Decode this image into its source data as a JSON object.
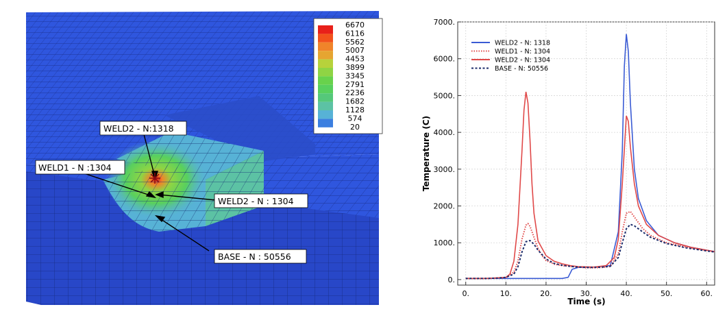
{
  "fe_model": {
    "colorbar": {
      "levels": [
        "6670",
        "6116",
        "5562",
        "5007",
        "4453",
        "3899",
        "3345",
        "2791",
        "2236",
        "1682",
        "1128",
        "574",
        "20"
      ],
      "colors": [
        "#e8201a",
        "#f2521c",
        "#f0842a",
        "#e6a531",
        "#b7d23b",
        "#8fd444",
        "#68d24c",
        "#58d05e",
        "#55c87a",
        "#5cc2a4",
        "#57b2d6",
        "#3b7fe0",
        "#2a52e0"
      ]
    },
    "annotations": [
      {
        "label": "WELD2 - N:1318"
      },
      {
        "label": "WELD1 - N :1304"
      },
      {
        "label": "WELD2 - N : 1304"
      },
      {
        "label": "BASE - N : 50556"
      }
    ],
    "mesh_color": "#2f56de"
  },
  "chart_data": {
    "type": "line",
    "xlabel": "Time (s)",
    "ylabel": "Temperature (C)",
    "xlim": [
      -2,
      62
    ],
    "ylim": [
      -150,
      7000
    ],
    "xticks": [
      0,
      10,
      20,
      30,
      40,
      50,
      60
    ],
    "xtick_labels": [
      "0.",
      "10.",
      "20.",
      "30.",
      "40.",
      "50.",
      "60."
    ],
    "yticks": [
      0,
      1000,
      2000,
      3000,
      4000,
      5000,
      6000,
      7000
    ],
    "ytick_labels": [
      "0.",
      "1000.",
      "2000.",
      "3000.",
      "4000.",
      "5000.",
      "6000.",
      "7000."
    ],
    "legend_position": "top-left",
    "series": [
      {
        "name": "WELD2 - N: 1318",
        "color": "#3a5bd4",
        "style": "solid",
        "x": [
          0,
          5,
          10,
          15,
          20,
          24,
          25.5,
          26.5,
          28,
          32,
          36,
          38,
          39,
          39.5,
          40,
          40.5,
          41,
          42,
          43,
          45,
          48,
          52,
          56,
          60,
          62
        ],
        "y": [
          30,
          30,
          30,
          30,
          30,
          30,
          60,
          280,
          330,
          340,
          380,
          1300,
          3500,
          5800,
          6670,
          6200,
          4800,
          3000,
          2200,
          1600,
          1200,
          1000,
          880,
          800,
          760
        ]
      },
      {
        "name": "WELD1 - N: 1304",
        "color": "#e04848",
        "style": "dotted",
        "x": [
          0,
          5,
          8,
          10,
          12,
          13,
          14,
          15,
          15.5,
          16,
          17,
          18,
          19,
          20,
          22,
          24,
          26,
          28,
          30,
          32,
          34,
          36,
          38,
          39,
          40,
          41,
          42,
          44,
          46,
          50,
          55,
          60,
          62
        ],
        "y": [
          30,
          30,
          40,
          60,
          200,
          500,
          1100,
          1480,
          1520,
          1450,
          1150,
          850,
          650,
          520,
          420,
          380,
          360,
          340,
          320,
          320,
          330,
          360,
          700,
          1300,
          1800,
          1850,
          1700,
          1400,
          1200,
          1000,
          880,
          790,
          760
        ]
      },
      {
        "name": "WELD2 - N: 1304",
        "color": "#e04848",
        "style": "solid",
        "x": [
          0,
          5,
          10,
          11,
          12,
          13,
          14,
          14.5,
          15,
          15.5,
          16,
          16.5,
          17,
          18,
          20,
          22,
          24,
          26,
          28,
          32,
          35,
          37,
          38,
          39,
          40,
          40.5,
          41,
          42,
          43,
          45,
          48,
          52,
          56,
          60,
          62
        ],
        "y": [
          30,
          30,
          60,
          150,
          500,
          1500,
          3500,
          4600,
          5100,
          4800,
          3800,
          2600,
          1800,
          1050,
          650,
          500,
          430,
          380,
          350,
          340,
          380,
          600,
          1100,
          2600,
          4450,
          4300,
          3600,
          2600,
          2000,
          1500,
          1200,
          1000,
          880,
          800,
          760
        ]
      },
      {
        "name": "BASE - N: 50556",
        "color": "#1a2a6a",
        "style": "dashed",
        "x": [
          0,
          5,
          8,
          10,
          12,
          13,
          14,
          15,
          16,
          17,
          18,
          20,
          22,
          24,
          26,
          28,
          30,
          32,
          34,
          36,
          38,
          39,
          40,
          41,
          42,
          44,
          46,
          50,
          55,
          60,
          62
        ],
        "y": [
          30,
          30,
          40,
          60,
          150,
          350,
          750,
          1030,
          1060,
          960,
          800,
          560,
          440,
          390,
          360,
          340,
          330,
          330,
          340,
          360,
          600,
          1000,
          1380,
          1500,
          1460,
          1300,
          1150,
          980,
          860,
          780,
          750
        ]
      }
    ]
  }
}
